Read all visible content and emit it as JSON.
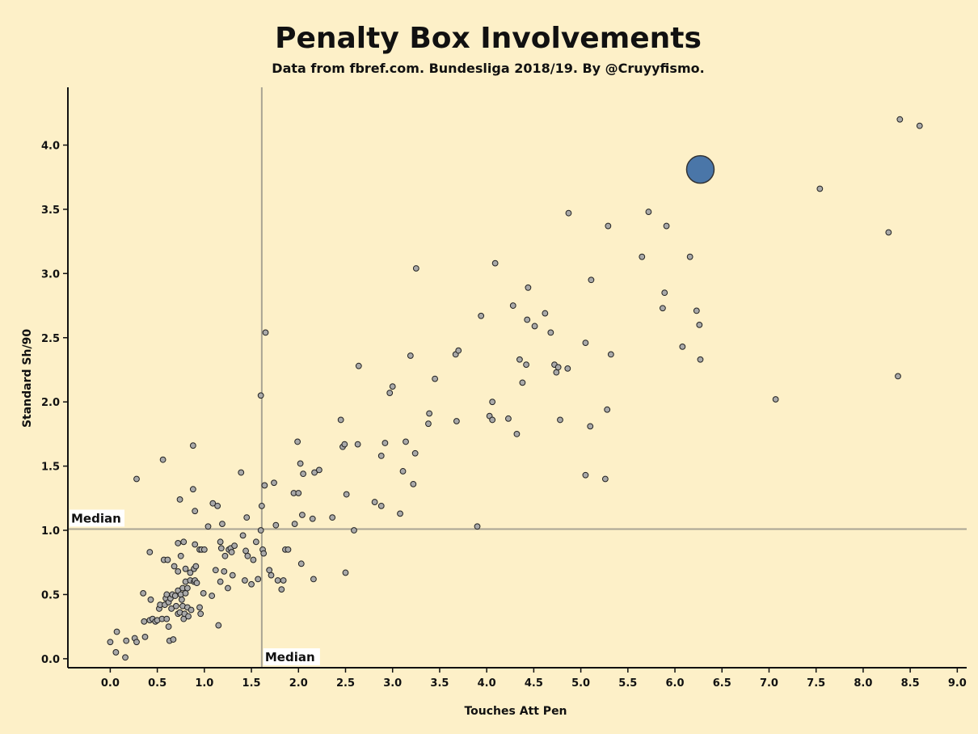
{
  "colors": {
    "background": "#fdf0c8",
    "point_fill": "#a9a9a9",
    "point_stroke": "#222222",
    "highlight_fill": "#4a76a8",
    "highlight_stroke": "#333333",
    "median_line": "#a9a493",
    "axis": "#111111"
  },
  "chart_data": {
    "type": "scatter",
    "title": "Penalty Box Involvements",
    "subtitle": "Data from fbref.com. Bundesliga 2018/19. By @Cruyyfismo.",
    "xlabel": "Touches Att Pen",
    "ylabel": "Standard Sh/90",
    "xlim": [
      -0.45,
      9.1
    ],
    "ylim": [
      -0.07,
      4.45
    ],
    "x_ticks": [
      0.0,
      0.5,
      1.0,
      1.5,
      2.0,
      2.5,
      3.0,
      3.5,
      4.0,
      4.5,
      5.0,
      5.5,
      6.0,
      6.5,
      7.0,
      7.5,
      8.0,
      8.5,
      9.0
    ],
    "x_tick_labels": [
      "0.0",
      "0.5",
      "1.0",
      "1.5",
      "2.0",
      "2.5",
      "3.0",
      "3.5",
      "4.0",
      "4.5",
      "5.0",
      "5.5",
      "6.0",
      "6.5",
      "7.0",
      "7.5",
      "8.0",
      "8.5",
      "9.0"
    ],
    "y_ticks": [
      0.0,
      0.5,
      1.0,
      1.5,
      2.0,
      2.5,
      3.0,
      3.5,
      4.0
    ],
    "y_tick_labels": [
      "0.0",
      "0.5",
      "1.0",
      "1.5",
      "2.0",
      "2.5",
      "3.0",
      "3.5",
      "4.0"
    ],
    "grid": false,
    "median_x": 1.61,
    "median_y": 1.01,
    "median_x_label": "Median",
    "median_y_label": "Median",
    "highlight_point": {
      "x": 6.27,
      "y": 3.81
    },
    "points": [
      [
        0.0,
        0.13
      ],
      [
        0.06,
        0.05
      ],
      [
        0.07,
        0.21
      ],
      [
        0.16,
        0.01
      ],
      [
        0.17,
        0.14
      ],
      [
        0.26,
        0.16
      ],
      [
        0.28,
        0.13
      ],
      [
        0.28,
        1.4
      ],
      [
        0.35,
        0.51
      ],
      [
        0.36,
        0.29
      ],
      [
        0.37,
        0.17
      ],
      [
        0.42,
        0.83
      ],
      [
        0.42,
        0.3
      ],
      [
        0.43,
        0.46
      ],
      [
        0.45,
        0.31
      ],
      [
        0.48,
        0.29
      ],
      [
        0.5,
        0.3
      ],
      [
        0.52,
        0.39
      ],
      [
        0.53,
        0.42
      ],
      [
        0.55,
        0.31
      ],
      [
        0.56,
        1.55
      ],
      [
        0.57,
        0.77
      ],
      [
        0.58,
        0.42
      ],
      [
        0.59,
        0.47
      ],
      [
        0.6,
        0.31
      ],
      [
        0.6,
        0.5
      ],
      [
        0.61,
        0.77
      ],
      [
        0.62,
        0.25
      ],
      [
        0.62,
        0.44
      ],
      [
        0.63,
        0.14
      ],
      [
        0.64,
        0.47
      ],
      [
        0.65,
        0.39
      ],
      [
        0.66,
        0.5
      ],
      [
        0.67,
        0.15
      ],
      [
        0.68,
        0.72
      ],
      [
        0.69,
        0.49
      ],
      [
        0.7,
        0.41
      ],
      [
        0.72,
        0.53
      ],
      [
        0.72,
        0.35
      ],
      [
        0.72,
        0.68
      ],
      [
        0.72,
        0.9
      ],
      [
        0.74,
        0.36
      ],
      [
        0.74,
        1.24
      ],
      [
        0.75,
        0.5
      ],
      [
        0.75,
        0.8
      ],
      [
        0.76,
        0.46
      ],
      [
        0.77,
        0.55
      ],
      [
        0.77,
        0.41
      ],
      [
        0.78,
        0.91
      ],
      [
        0.78,
        0.31
      ],
      [
        0.79,
        0.35
      ],
      [
        0.8,
        0.6
      ],
      [
        0.8,
        0.51
      ],
      [
        0.8,
        0.7
      ],
      [
        0.82,
        0.55
      ],
      [
        0.82,
        0.4
      ],
      [
        0.83,
        0.33
      ],
      [
        0.85,
        0.61
      ],
      [
        0.85,
        0.67
      ],
      [
        0.86,
        0.38
      ],
      [
        0.88,
        1.66
      ],
      [
        0.88,
        1.32
      ],
      [
        0.89,
        0.6
      ],
      [
        0.89,
        0.7
      ],
      [
        0.9,
        0.89
      ],
      [
        0.9,
        0.61
      ],
      [
        0.9,
        1.15
      ],
      [
        0.91,
        0.72
      ],
      [
        0.92,
        0.59
      ],
      [
        0.95,
        0.85
      ],
      [
        0.95,
        0.4
      ],
      [
        0.96,
        0.35
      ],
      [
        0.97,
        0.85
      ],
      [
        0.99,
        0.51
      ],
      [
        1.0,
        0.85
      ],
      [
        1.04,
        1.03
      ],
      [
        1.08,
        0.49
      ],
      [
        1.09,
        1.21
      ],
      [
        1.12,
        0.69
      ],
      [
        1.14,
        1.19
      ],
      [
        1.15,
        0.26
      ],
      [
        1.17,
        0.91
      ],
      [
        1.17,
        0.6
      ],
      [
        1.18,
        0.86
      ],
      [
        1.19,
        1.05
      ],
      [
        1.21,
        0.68
      ],
      [
        1.22,
        0.8
      ],
      [
        1.25,
        0.55
      ],
      [
        1.26,
        0.85
      ],
      [
        1.28,
        0.86
      ],
      [
        1.29,
        0.83
      ],
      [
        1.3,
        0.65
      ],
      [
        1.32,
        0.88
      ],
      [
        1.39,
        1.45
      ],
      [
        1.41,
        0.96
      ],
      [
        1.43,
        0.61
      ],
      [
        1.44,
        0.84
      ],
      [
        1.45,
        1.1
      ],
      [
        1.46,
        0.8
      ],
      [
        1.5,
        0.58
      ],
      [
        1.52,
        0.77
      ],
      [
        1.55,
        0.91
      ],
      [
        1.57,
        0.62
      ],
      [
        1.6,
        1.0
      ],
      [
        1.6,
        2.05
      ],
      [
        1.61,
        1.19
      ],
      [
        1.62,
        0.85
      ],
      [
        1.63,
        0.82
      ],
      [
        1.64,
        1.35
      ],
      [
        1.65,
        2.54
      ],
      [
        1.69,
        0.69
      ],
      [
        1.71,
        0.65
      ],
      [
        1.74,
        1.37
      ],
      [
        1.76,
        1.04
      ],
      [
        1.78,
        0.61
      ],
      [
        1.82,
        0.54
      ],
      [
        1.84,
        0.61
      ],
      [
        1.86,
        0.85
      ],
      [
        1.89,
        0.85
      ],
      [
        1.95,
        1.29
      ],
      [
        1.96,
        1.05
      ],
      [
        1.99,
        1.69
      ],
      [
        2.0,
        1.29
      ],
      [
        2.02,
        1.52
      ],
      [
        2.03,
        0.74
      ],
      [
        2.04,
        1.12
      ],
      [
        2.05,
        1.44
      ],
      [
        2.15,
        1.09
      ],
      [
        2.16,
        0.62
      ],
      [
        2.17,
        1.45
      ],
      [
        2.22,
        1.47
      ],
      [
        2.36,
        1.1
      ],
      [
        2.45,
        1.86
      ],
      [
        2.47,
        1.65
      ],
      [
        2.49,
        1.67
      ],
      [
        2.5,
        0.67
      ],
      [
        2.51,
        1.28
      ],
      [
        2.59,
        1.0
      ],
      [
        2.63,
        1.67
      ],
      [
        2.64,
        2.28
      ],
      [
        2.81,
        1.22
      ],
      [
        2.88,
        1.19
      ],
      [
        2.88,
        1.58
      ],
      [
        2.92,
        1.68
      ],
      [
        2.97,
        2.07
      ],
      [
        3.0,
        2.12
      ],
      [
        3.08,
        1.13
      ],
      [
        3.11,
        1.46
      ],
      [
        3.14,
        1.69
      ],
      [
        3.19,
        2.36
      ],
      [
        3.22,
        1.36
      ],
      [
        3.24,
        1.6
      ],
      [
        3.25,
        3.04
      ],
      [
        3.38,
        1.83
      ],
      [
        3.39,
        1.91
      ],
      [
        3.45,
        2.18
      ],
      [
        3.67,
        2.37
      ],
      [
        3.68,
        1.85
      ],
      [
        3.7,
        2.4
      ],
      [
        3.9,
        1.03
      ],
      [
        3.94,
        2.67
      ],
      [
        4.03,
        1.89
      ],
      [
        4.06,
        1.86
      ],
      [
        4.06,
        2.0
      ],
      [
        4.09,
        3.08
      ],
      [
        4.23,
        1.87
      ],
      [
        4.28,
        2.75
      ],
      [
        4.32,
        1.75
      ],
      [
        4.35,
        2.33
      ],
      [
        4.38,
        2.15
      ],
      [
        4.42,
        2.29
      ],
      [
        4.43,
        2.64
      ],
      [
        4.44,
        2.89
      ],
      [
        4.51,
        2.59
      ],
      [
        4.62,
        2.69
      ],
      [
        4.68,
        2.54
      ],
      [
        4.72,
        2.29
      ],
      [
        4.74,
        2.23
      ],
      [
        4.76,
        2.27
      ],
      [
        4.78,
        1.86
      ],
      [
        4.86,
        2.26
      ],
      [
        4.87,
        3.47
      ],
      [
        5.05,
        1.43
      ],
      [
        5.05,
        2.46
      ],
      [
        5.1,
        1.81
      ],
      [
        5.11,
        2.95
      ],
      [
        5.26,
        1.4
      ],
      [
        5.28,
        1.94
      ],
      [
        5.29,
        3.37
      ],
      [
        5.32,
        2.37
      ],
      [
        5.65,
        3.13
      ],
      [
        5.72,
        3.48
      ],
      [
        5.87,
        2.73
      ],
      [
        5.89,
        2.85
      ],
      [
        5.91,
        3.37
      ],
      [
        6.08,
        2.43
      ],
      [
        6.16,
        3.13
      ],
      [
        6.23,
        2.71
      ],
      [
        6.26,
        2.6
      ],
      [
        6.27,
        2.33
      ],
      [
        7.07,
        2.02
      ],
      [
        7.54,
        3.66
      ],
      [
        8.27,
        3.32
      ],
      [
        8.37,
        2.2
      ],
      [
        8.39,
        4.2
      ],
      [
        8.6,
        4.15
      ]
    ]
  }
}
